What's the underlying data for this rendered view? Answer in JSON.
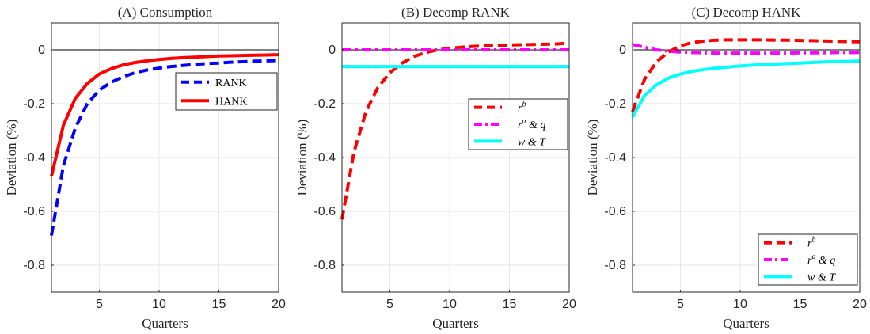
{
  "chart_data": [
    {
      "type": "line",
      "title": "(A) Consumption",
      "xlabel": "Quarters",
      "ylabel": "Deviation (%)",
      "xlim": [
        1,
        20
      ],
      "ylim": [
        -0.9,
        0.1
      ],
      "xticks": [
        "5",
        "10",
        "15",
        "20"
      ],
      "yticks": [
        "0",
        "-0.2",
        "-0.4",
        "-0.6",
        "-0.8"
      ],
      "grid": true,
      "legend_position": "upper-right",
      "zero_line": true,
      "x": [
        1,
        2,
        3,
        4,
        5,
        6,
        7,
        8,
        9,
        10,
        11,
        12,
        13,
        14,
        15,
        16,
        17,
        18,
        19,
        20
      ],
      "series": [
        {
          "name": "RANK",
          "color": "#0000ff",
          "style": "dashed",
          "values": [
            -0.69,
            -0.43,
            -0.29,
            -0.2,
            -0.15,
            -0.12,
            -0.1,
            -0.085,
            -0.075,
            -0.068,
            -0.062,
            -0.058,
            -0.054,
            -0.051,
            -0.049,
            -0.046,
            -0.044,
            -0.042,
            -0.041,
            -0.04
          ]
        },
        {
          "name": "HANK",
          "color": "#ff0000",
          "style": "solid",
          "values": [
            -0.47,
            -0.28,
            -0.18,
            -0.125,
            -0.09,
            -0.07,
            -0.056,
            -0.047,
            -0.041,
            -0.036,
            -0.032,
            -0.029,
            -0.027,
            -0.025,
            -0.023,
            -0.022,
            -0.021,
            -0.02,
            -0.019,
            -0.018
          ]
        }
      ]
    },
    {
      "type": "line",
      "title": "(B) Decomp RANK",
      "xlabel": "Quarters",
      "ylabel": "Deviation (%)",
      "xlim": [
        1,
        20
      ],
      "ylim": [
        -0.9,
        0.1
      ],
      "xticks": [
        "5",
        "10",
        "15",
        "20"
      ],
      "yticks": [
        "0",
        "-0.2",
        "-0.4",
        "-0.6",
        "-0.8"
      ],
      "grid": true,
      "legend_position": "center-right",
      "zero_line": true,
      "x": [
        1,
        2,
        3,
        4,
        5,
        6,
        7,
        8,
        9,
        10,
        11,
        12,
        13,
        14,
        15,
        16,
        17,
        18,
        19,
        20
      ],
      "series": [
        {
          "name": "r^b",
          "label_main": "r",
          "label_sup": "b",
          "label_rest": "",
          "color": "#ff0000",
          "style": "dashed",
          "values": [
            -0.63,
            -0.38,
            -0.23,
            -0.14,
            -0.085,
            -0.05,
            -0.025,
            -0.01,
            0.0,
            0.006,
            0.01,
            0.013,
            0.015,
            0.017,
            0.018,
            0.019,
            0.02,
            0.021,
            0.022,
            0.025
          ]
        },
        {
          "name": "r^a & q",
          "label_main": "r",
          "label_sup": "a",
          "label_rest": " & q",
          "color": "#ff00ff",
          "style": "dashdot",
          "values": [
            0,
            0,
            0,
            0,
            0,
            0,
            0,
            0,
            0,
            0,
            0,
            0,
            0,
            0,
            0,
            0,
            0,
            0,
            0,
            0
          ]
        },
        {
          "name": "w & T",
          "label_main": "w & T",
          "label_sup": "",
          "label_rest": "",
          "color": "#00ffff",
          "style": "solid",
          "values": [
            -0.062,
            -0.062,
            -0.062,
            -0.062,
            -0.062,
            -0.062,
            -0.062,
            -0.062,
            -0.062,
            -0.062,
            -0.062,
            -0.062,
            -0.062,
            -0.062,
            -0.062,
            -0.062,
            -0.062,
            -0.062,
            -0.062,
            -0.062
          ]
        }
      ]
    },
    {
      "type": "line",
      "title": "(C) Decomp HANK",
      "xlabel": "Quarters",
      "ylabel": "Deviation (%)",
      "xlim": [
        1,
        20
      ],
      "ylim": [
        -0.9,
        0.1
      ],
      "xticks": [
        "5",
        "10",
        "15",
        "20"
      ],
      "yticks": [
        "0",
        "-0.2",
        "-0.4",
        "-0.6",
        "-0.8"
      ],
      "grid": true,
      "legend_position": "lower-right",
      "zero_line": true,
      "x": [
        1,
        2,
        3,
        4,
        5,
        6,
        7,
        8,
        9,
        10,
        11,
        12,
        13,
        14,
        15,
        16,
        17,
        18,
        19,
        20
      ],
      "series": [
        {
          "name": "r^b",
          "label_main": "r",
          "label_sup": "b",
          "label_rest": "",
          "color": "#ff0000",
          "style": "dashed",
          "values": [
            -0.23,
            -0.11,
            -0.045,
            -0.008,
            0.015,
            0.027,
            0.033,
            0.036,
            0.037,
            0.037,
            0.037,
            0.037,
            0.036,
            0.036,
            0.035,
            0.034,
            0.033,
            0.032,
            0.031,
            0.03
          ]
        },
        {
          "name": "r^a & q",
          "label_main": "r",
          "label_sup": "a",
          "label_rest": " & q",
          "color": "#ff00ff",
          "style": "dashdot",
          "values": [
            0.02,
            0.01,
            0.0,
            -0.005,
            -0.008,
            -0.01,
            -0.011,
            -0.012,
            -0.012,
            -0.012,
            -0.012,
            -0.012,
            -0.012,
            -0.012,
            -0.011,
            -0.011,
            -0.011,
            -0.01,
            -0.01,
            -0.01
          ]
        },
        {
          "name": "w & T",
          "label_main": "w & T",
          "label_sup": "",
          "label_rest": "",
          "color": "#00ffff",
          "style": "solid",
          "values": [
            -0.25,
            -0.17,
            -0.13,
            -0.105,
            -0.09,
            -0.08,
            -0.073,
            -0.068,
            -0.064,
            -0.06,
            -0.057,
            -0.055,
            -0.053,
            -0.051,
            -0.049,
            -0.047,
            -0.045,
            -0.044,
            -0.043,
            -0.042
          ]
        }
      ]
    }
  ]
}
